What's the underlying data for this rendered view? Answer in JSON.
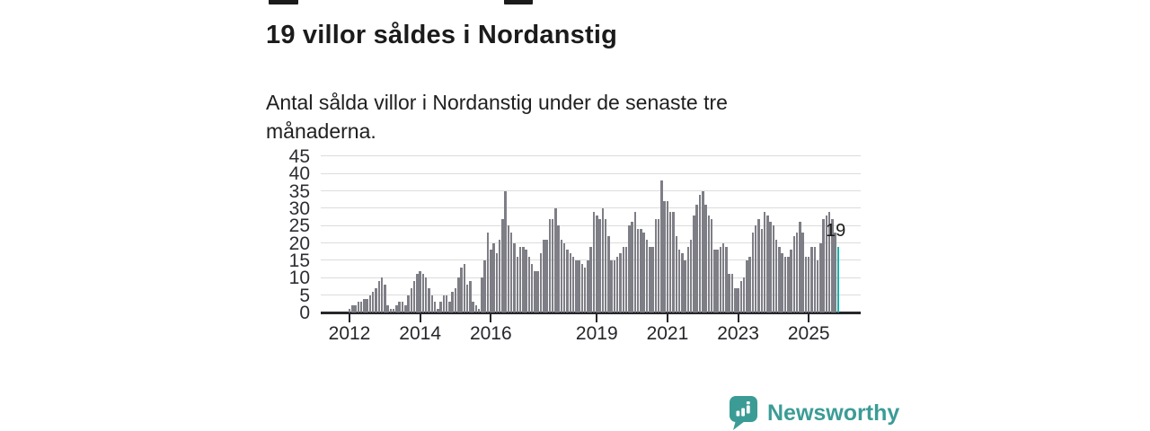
{
  "title": "19 villor såldes i Nordanstig",
  "subtitle": "Antal sålda villor i Nordanstig under de senaste tre månaderna.",
  "branding": {
    "name": "Newsworthy",
    "logo_icon": "speech-bubble-bar-chart-icon",
    "brand_color": "#3b9c96"
  },
  "colors": {
    "bar": "#7e7e86",
    "highlight": "#14b3ab",
    "grid": "#dcdcdc",
    "axis": "#26262b",
    "text": "#1b1b1b"
  },
  "chart_data": {
    "type": "bar",
    "title": "19 villor såldes i Nordanstig",
    "subtitle": "Antal sålda villor i Nordanstig under de senaste tre månaderna.",
    "xlabel": "",
    "ylabel": "",
    "ylim": [
      0,
      45
    ],
    "yticks": [
      0,
      5,
      10,
      15,
      20,
      25,
      30,
      35,
      40,
      45
    ],
    "grid": true,
    "legend": "none",
    "frequency": "monthly",
    "start": "2012-01",
    "end": "2025-11",
    "xticks": [
      {
        "label": "2012",
        "month_index": 0
      },
      {
        "label": "2014",
        "month_index": 24
      },
      {
        "label": "2016",
        "month_index": 48
      },
      {
        "label": "2019",
        "month_index": 84
      },
      {
        "label": "2021",
        "month_index": 108
      },
      {
        "label": "2023",
        "month_index": 132
      },
      {
        "label": "2025",
        "month_index": 156
      }
    ],
    "values": [
      1,
      2,
      2,
      3,
      3,
      4,
      4,
      5,
      6,
      7,
      9,
      10,
      8,
      2,
      1,
      1,
      2,
      3,
      3,
      2,
      5,
      7,
      9,
      11,
      12,
      11,
      10,
      7,
      5,
      3,
      1,
      3,
      5,
      5,
      3,
      6,
      7,
      10,
      13,
      14,
      8,
      9,
      3,
      2,
      1,
      10,
      15,
      23,
      18,
      20,
      17,
      21,
      27,
      35,
      25,
      23,
      20,
      16,
      19,
      19,
      18,
      16,
      14,
      12,
      12,
      17,
      21,
      21,
      27,
      27,
      30,
      25,
      21,
      20,
      18,
      17,
      16,
      15,
      15,
      14,
      13,
      15,
      19,
      29,
      28,
      27,
      30,
      27,
      22,
      15,
      15,
      16,
      17,
      19,
      19,
      25,
      26,
      29,
      24,
      24,
      23,
      21,
      19,
      19,
      27,
      27,
      38,
      32,
      32,
      29,
      29,
      22,
      18,
      17,
      15,
      19,
      21,
      28,
      31,
      34,
      35,
      31,
      28,
      27,
      18,
      18,
      19,
      20,
      19,
      11,
      11,
      7,
      7,
      9,
      10,
      15,
      16,
      23,
      25,
      27,
      24,
      29,
      28,
      26,
      25,
      21,
      19,
      17,
      16,
      16,
      18,
      22,
      23,
      26,
      23,
      16,
      16,
      19,
      19,
      15,
      20,
      27,
      28,
      29,
      27,
      23,
      19
    ],
    "highlight_index": 166,
    "highlight_value": 19,
    "highlight_label": "19"
  }
}
